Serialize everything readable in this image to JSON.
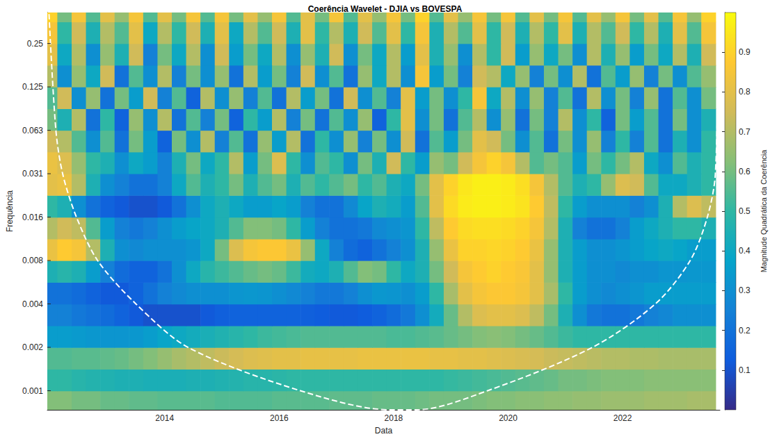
{
  "chart_data": {
    "type": "heatmap",
    "title": "Coerência Wavelet - DJIA vs BOVESPA",
    "x_label": "Data",
    "y_label": "Frequência",
    "log": "y",
    "grid": false,
    "xlim": [
      2011.95,
      2023.7
    ],
    "xticks": [
      2014,
      2016,
      2018,
      2020,
      2022
    ],
    "ylim": [
      0.00072,
      0.41
    ],
    "yticks": [
      {
        "value": 0.0009765625,
        "label": "0.001"
      },
      {
        "value": 0.001953125,
        "label": "0.002"
      },
      {
        "value": 0.00390625,
        "label": "0.004"
      },
      {
        "value": 0.0078125,
        "label": "0.008"
      },
      {
        "value": 0.015625,
        "label": "0.016"
      },
      {
        "value": 0.03125,
        "label": "0.031"
      },
      {
        "value": 0.0625,
        "label": "0.063"
      },
      0.125,
      0.25
    ],
    "colorbar": {
      "label": "Magnitude Quadrática da Coerência",
      "lim": [
        0,
        1
      ],
      "ticks": [
        0.1,
        0.2,
        0.3,
        0.4,
        0.5,
        0.6,
        0.7,
        0.8,
        0.9
      ]
    },
    "x": [
      2012,
      2012.25,
      2012.5,
      2012.75,
      2013,
      2013.25,
      2013.5,
      2013.75,
      2014,
      2014.25,
      2014.5,
      2014.75,
      2015,
      2015.25,
      2015.5,
      2015.75,
      2016,
      2016.25,
      2016.5,
      2016.75,
      2017,
      2017.25,
      2017.5,
      2017.75,
      2018,
      2018.25,
      2018.5,
      2018.75,
      2019,
      2019.25,
      2019.5,
      2019.75,
      2020,
      2020.25,
      2020.5,
      2020.75,
      2021,
      2021.25,
      2021.5,
      2021.75,
      2022,
      2022.25,
      2022.5,
      2022.75,
      2023,
      2023.25,
      2023.5
    ],
    "y": [
      0.00082,
      0.00116,
      0.00164,
      0.00232,
      0.00328,
      0.00464,
      0.00657,
      0.00929,
      0.0131,
      0.0186,
      0.0263,
      0.0372,
      0.0526,
      0.0743,
      0.105,
      0.149,
      0.21,
      0.297,
      0.42
    ],
    "z": [
      [
        0.62,
        0.62,
        0.6,
        0.6,
        0.58,
        0.58,
        0.57,
        0.57,
        0.56,
        0.56,
        0.56,
        0.56,
        0.55,
        0.55,
        0.55,
        0.55,
        0.56,
        0.56,
        0.56,
        0.56,
        0.57,
        0.57,
        0.57,
        0.58,
        0.58,
        0.58,
        0.59,
        0.6,
        0.6,
        0.6,
        0.61,
        0.62,
        0.62,
        0.63,
        0.63,
        0.64,
        0.64,
        0.65,
        0.65,
        0.66,
        0.66,
        0.66,
        0.67,
        0.67,
        0.67,
        0.68,
        0.68
      ],
      [
        0.5,
        0.5,
        0.48,
        0.47,
        0.46,
        0.45,
        0.45,
        0.44,
        0.44,
        0.44,
        0.45,
        0.45,
        0.46,
        0.47,
        0.48,
        0.48,
        0.49,
        0.5,
        0.5,
        0.5,
        0.5,
        0.5,
        0.5,
        0.5,
        0.5,
        0.5,
        0.5,
        0.5,
        0.51,
        0.52,
        0.53,
        0.54,
        0.55,
        0.56,
        0.57,
        0.58,
        0.6,
        0.6,
        0.61,
        0.62,
        0.62,
        0.62,
        0.63,
        0.63,
        0.63,
        0.63,
        0.63
      ],
      [
        0.55,
        0.55,
        0.56,
        0.56,
        0.57,
        0.58,
        0.6,
        0.62,
        0.65,
        0.68,
        0.7,
        0.72,
        0.74,
        0.76,
        0.78,
        0.79,
        0.8,
        0.8,
        0.81,
        0.81,
        0.81,
        0.81,
        0.82,
        0.82,
        0.82,
        0.82,
        0.82,
        0.81,
        0.81,
        0.8,
        0.8,
        0.79,
        0.78,
        0.77,
        0.76,
        0.74,
        0.73,
        0.72,
        0.71,
        0.7,
        0.7,
        0.69,
        0.69,
        0.68,
        0.68,
        0.68,
        0.68
      ],
      [
        0.35,
        0.35,
        0.34,
        0.33,
        0.32,
        0.32,
        0.33,
        0.35,
        0.38,
        0.4,
        0.42,
        0.44,
        0.46,
        0.48,
        0.5,
        0.52,
        0.53,
        0.54,
        0.55,
        0.55,
        0.55,
        0.55,
        0.55,
        0.55,
        0.54,
        0.54,
        0.55,
        0.56,
        0.58,
        0.6,
        0.62,
        0.63,
        0.62,
        0.6,
        0.58,
        0.55,
        0.52,
        0.5,
        0.5,
        0.5,
        0.5,
        0.5,
        0.5,
        0.5,
        0.5,
        0.5,
        0.5
      ],
      [
        0.25,
        0.25,
        0.22,
        0.2,
        0.18,
        0.15,
        0.12,
        0.1,
        0.1,
        0.1,
        0.1,
        0.12,
        0.14,
        0.15,
        0.15,
        0.15,
        0.15,
        0.15,
        0.14,
        0.13,
        0.12,
        0.12,
        0.13,
        0.15,
        0.18,
        0.22,
        0.3,
        0.42,
        0.58,
        0.7,
        0.78,
        0.8,
        0.8,
        0.78,
        0.72,
        0.6,
        0.45,
        0.3,
        0.22,
        0.2,
        0.2,
        0.22,
        0.25,
        0.27,
        0.3,
        0.3,
        0.3
      ],
      [
        0.2,
        0.2,
        0.18,
        0.15,
        0.12,
        0.12,
        0.15,
        0.2,
        0.25,
        0.28,
        0.3,
        0.3,
        0.3,
        0.32,
        0.33,
        0.32,
        0.3,
        0.28,
        0.25,
        0.22,
        0.22,
        0.25,
        0.3,
        0.33,
        0.32,
        0.3,
        0.35,
        0.5,
        0.68,
        0.8,
        0.85,
        0.87,
        0.87,
        0.85,
        0.8,
        0.68,
        0.5,
        0.35,
        0.3,
        0.28,
        0.3,
        0.32,
        0.35,
        0.35,
        0.35,
        0.35,
        0.35
      ],
      [
        0.45,
        0.48,
        0.45,
        0.35,
        0.25,
        0.18,
        0.15,
        0.15,
        0.2,
        0.3,
        0.4,
        0.48,
        0.52,
        0.55,
        0.58,
        0.6,
        0.58,
        0.52,
        0.42,
        0.4,
        0.45,
        0.55,
        0.62,
        0.6,
        0.5,
        0.4,
        0.45,
        0.6,
        0.75,
        0.85,
        0.88,
        0.9,
        0.88,
        0.86,
        0.8,
        0.65,
        0.45,
        0.35,
        0.3,
        0.3,
        0.28,
        0.3,
        0.3,
        0.32,
        0.32,
        0.33,
        0.33
      ],
      [
        0.82,
        0.88,
        0.85,
        0.7,
        0.45,
        0.3,
        0.28,
        0.3,
        0.3,
        0.3,
        0.32,
        0.4,
        0.6,
        0.78,
        0.85,
        0.87,
        0.87,
        0.82,
        0.65,
        0.4,
        0.25,
        0.18,
        0.15,
        0.2,
        0.25,
        0.3,
        0.45,
        0.65,
        0.82,
        0.9,
        0.9,
        0.91,
        0.9,
        0.88,
        0.82,
        0.65,
        0.45,
        0.35,
        0.3,
        0.3,
        0.32,
        0.35,
        0.38,
        0.4,
        0.38,
        0.35,
        0.35
      ],
      [
        0.7,
        0.75,
        0.72,
        0.55,
        0.35,
        0.25,
        0.22,
        0.25,
        0.3,
        0.35,
        0.38,
        0.4,
        0.45,
        0.55,
        0.62,
        0.62,
        0.6,
        0.5,
        0.35,
        0.25,
        0.2,
        0.2,
        0.22,
        0.28,
        0.3,
        0.32,
        0.5,
        0.72,
        0.88,
        0.92,
        0.93,
        0.93,
        0.92,
        0.9,
        0.85,
        0.7,
        0.45,
        0.25,
        0.2,
        0.2,
        0.25,
        0.35,
        0.4,
        0.45,
        0.5,
        0.5,
        0.45
      ],
      [
        0.5,
        0.45,
        0.3,
        0.2,
        0.15,
        0.12,
        0.1,
        0.1,
        0.12,
        0.2,
        0.3,
        0.4,
        0.45,
        0.4,
        0.35,
        0.35,
        0.38,
        0.35,
        0.25,
        0.2,
        0.2,
        0.28,
        0.38,
        0.45,
        0.42,
        0.35,
        0.55,
        0.8,
        0.92,
        0.96,
        0.97,
        0.97,
        0.96,
        0.94,
        0.88,
        0.72,
        0.5,
        0.35,
        0.3,
        0.3,
        0.3,
        0.25,
        0.3,
        0.45,
        0.7,
        0.78,
        0.72
      ],
      [
        0.8,
        0.82,
        0.7,
        0.45,
        0.3,
        0.25,
        0.2,
        0.2,
        0.25,
        0.4,
        0.55,
        0.45,
        0.5,
        0.6,
        0.45,
        0.55,
        0.6,
        0.45,
        0.55,
        0.5,
        0.55,
        0.6,
        0.5,
        0.55,
        0.45,
        0.4,
        0.6,
        0.8,
        0.9,
        0.95,
        0.97,
        0.97,
        0.96,
        0.93,
        0.85,
        0.7,
        0.55,
        0.45,
        0.5,
        0.65,
        0.78,
        0.75,
        0.55,
        0.4,
        0.4,
        0.45,
        0.5
      ],
      [
        0.82,
        0.78,
        0.65,
        0.5,
        0.45,
        0.3,
        0.4,
        0.35,
        0.25,
        0.45,
        0.6,
        0.4,
        0.5,
        0.7,
        0.35,
        0.6,
        0.78,
        0.5,
        0.3,
        0.55,
        0.5,
        0.3,
        0.6,
        0.45,
        0.75,
        0.5,
        0.35,
        0.65,
        0.6,
        0.75,
        0.85,
        0.9,
        0.85,
        0.7,
        0.55,
        0.6,
        0.55,
        0.35,
        0.6,
        0.5,
        0.6,
        0.7,
        0.4,
        0.3,
        0.55,
        0.45,
        0.5
      ],
      [
        0.75,
        0.7,
        0.55,
        0.3,
        0.55,
        0.2,
        0.6,
        0.35,
        0.15,
        0.6,
        0.3,
        0.7,
        0.25,
        0.55,
        0.2,
        0.65,
        0.35,
        0.7,
        0.2,
        0.5,
        0.3,
        0.65,
        0.25,
        0.6,
        0.3,
        0.75,
        0.2,
        0.55,
        0.35,
        0.6,
        0.8,
        0.75,
        0.6,
        0.3,
        0.55,
        0.2,
        0.6,
        0.3,
        0.65,
        0.25,
        0.5,
        0.25,
        0.55,
        0.2,
        0.45,
        0.3,
        0.5
      ],
      [
        0.6,
        0.45,
        0.7,
        0.2,
        0.5,
        0.15,
        0.65,
        0.3,
        0.7,
        0.2,
        0.55,
        0.25,
        0.6,
        0.15,
        0.5,
        0.35,
        0.7,
        0.25,
        0.6,
        0.2,
        0.55,
        0.3,
        0.65,
        0.15,
        0.5,
        0.8,
        0.3,
        0.6,
        0.2,
        0.55,
        0.7,
        0.3,
        0.65,
        0.2,
        0.6,
        0.25,
        0.7,
        0.3,
        0.5,
        0.15,
        0.6,
        0.35,
        0.55,
        0.2,
        0.6,
        0.3,
        0.45
      ],
      [
        0.55,
        0.75,
        0.3,
        0.65,
        0.2,
        0.6,
        0.35,
        0.75,
        0.25,
        0.55,
        0.15,
        0.7,
        0.3,
        0.65,
        0.25,
        0.55,
        0.2,
        0.7,
        0.35,
        0.6,
        0.2,
        0.75,
        0.3,
        0.55,
        0.25,
        0.8,
        0.35,
        0.6,
        0.3,
        0.5,
        0.85,
        0.4,
        0.7,
        0.3,
        0.65,
        0.25,
        0.55,
        0.2,
        0.7,
        0.3,
        0.6,
        0.25,
        0.65,
        0.2,
        0.55,
        0.3,
        0.6
      ],
      [
        0.7,
        0.3,
        0.65,
        0.4,
        0.75,
        0.2,
        0.55,
        0.3,
        0.7,
        0.25,
        0.6,
        0.3,
        0.65,
        0.2,
        0.7,
        0.35,
        0.6,
        0.25,
        0.75,
        0.3,
        0.55,
        0.2,
        0.65,
        0.4,
        0.7,
        0.3,
        0.85,
        0.35,
        0.6,
        0.25,
        0.75,
        0.7,
        0.4,
        0.65,
        0.25,
        0.6,
        0.3,
        0.7,
        0.2,
        0.55,
        0.35,
        0.65,
        0.25,
        0.6,
        0.3,
        0.55,
        0.65
      ],
      [
        0.8,
        0.4,
        0.7,
        0.3,
        0.65,
        0.45,
        0.75,
        0.25,
        0.6,
        0.4,
        0.7,
        0.3,
        0.75,
        0.35,
        0.6,
        0.4,
        0.7,
        0.3,
        0.65,
        0.45,
        0.75,
        0.3,
        0.6,
        0.4,
        0.7,
        0.35,
        0.8,
        0.45,
        0.65,
        0.3,
        0.7,
        0.5,
        0.75,
        0.35,
        0.65,
        0.4,
        0.6,
        0.3,
        0.7,
        0.45,
        0.65,
        0.35,
        0.6,
        0.4,
        0.7,
        0.45,
        0.75
      ],
      [
        0.85,
        0.5,
        0.75,
        0.45,
        0.7,
        0.55,
        0.8,
        0.4,
        0.7,
        0.5,
        0.75,
        0.45,
        0.8,
        0.4,
        0.7,
        0.55,
        0.75,
        0.45,
        0.8,
        0.5,
        0.7,
        0.45,
        0.75,
        0.55,
        0.8,
        0.5,
        0.85,
        0.45,
        0.7,
        0.55,
        0.8,
        0.5,
        0.75,
        0.45,
        0.7,
        0.5,
        0.8,
        0.45,
        0.7,
        0.55,
        0.75,
        0.5,
        0.7,
        0.45,
        0.8,
        0.55,
        0.85
      ],
      [
        0.9,
        0.6,
        0.85,
        0.55,
        0.8,
        0.65,
        0.85,
        0.55,
        0.8,
        0.6,
        0.85,
        0.55,
        0.85,
        0.6,
        0.8,
        0.65,
        0.85,
        0.55,
        0.8,
        0.6,
        0.85,
        0.55,
        0.8,
        0.65,
        0.85,
        0.6,
        0.9,
        0.55,
        0.8,
        0.65,
        0.85,
        0.6,
        0.85,
        0.55,
        0.8,
        0.6,
        0.85,
        0.55,
        0.8,
        0.65,
        0.85,
        0.6,
        0.8,
        0.55,
        0.85,
        0.65,
        0.9
      ]
    ],
    "coi": {
      "color": "#ffffff",
      "line_style": "dashed",
      "x": [
        2011.98,
        2012.1,
        2012.22,
        2012.46,
        2012.83,
        2013.5,
        2014.41,
        2016.36,
        2017.94,
        2018.4,
        2019.65,
        2021.47,
        2022.57,
        2023.18,
        2023.48,
        2023.62,
        2023.68
      ],
      "values": [
        0.4,
        0.0625,
        0.031,
        0.0156,
        0.0078,
        0.0039,
        0.00195,
        0.00098,
        0.00072,
        0.00072,
        0.00098,
        0.00195,
        0.0039,
        0.0078,
        0.0156,
        0.031,
        0.4
      ]
    }
  }
}
